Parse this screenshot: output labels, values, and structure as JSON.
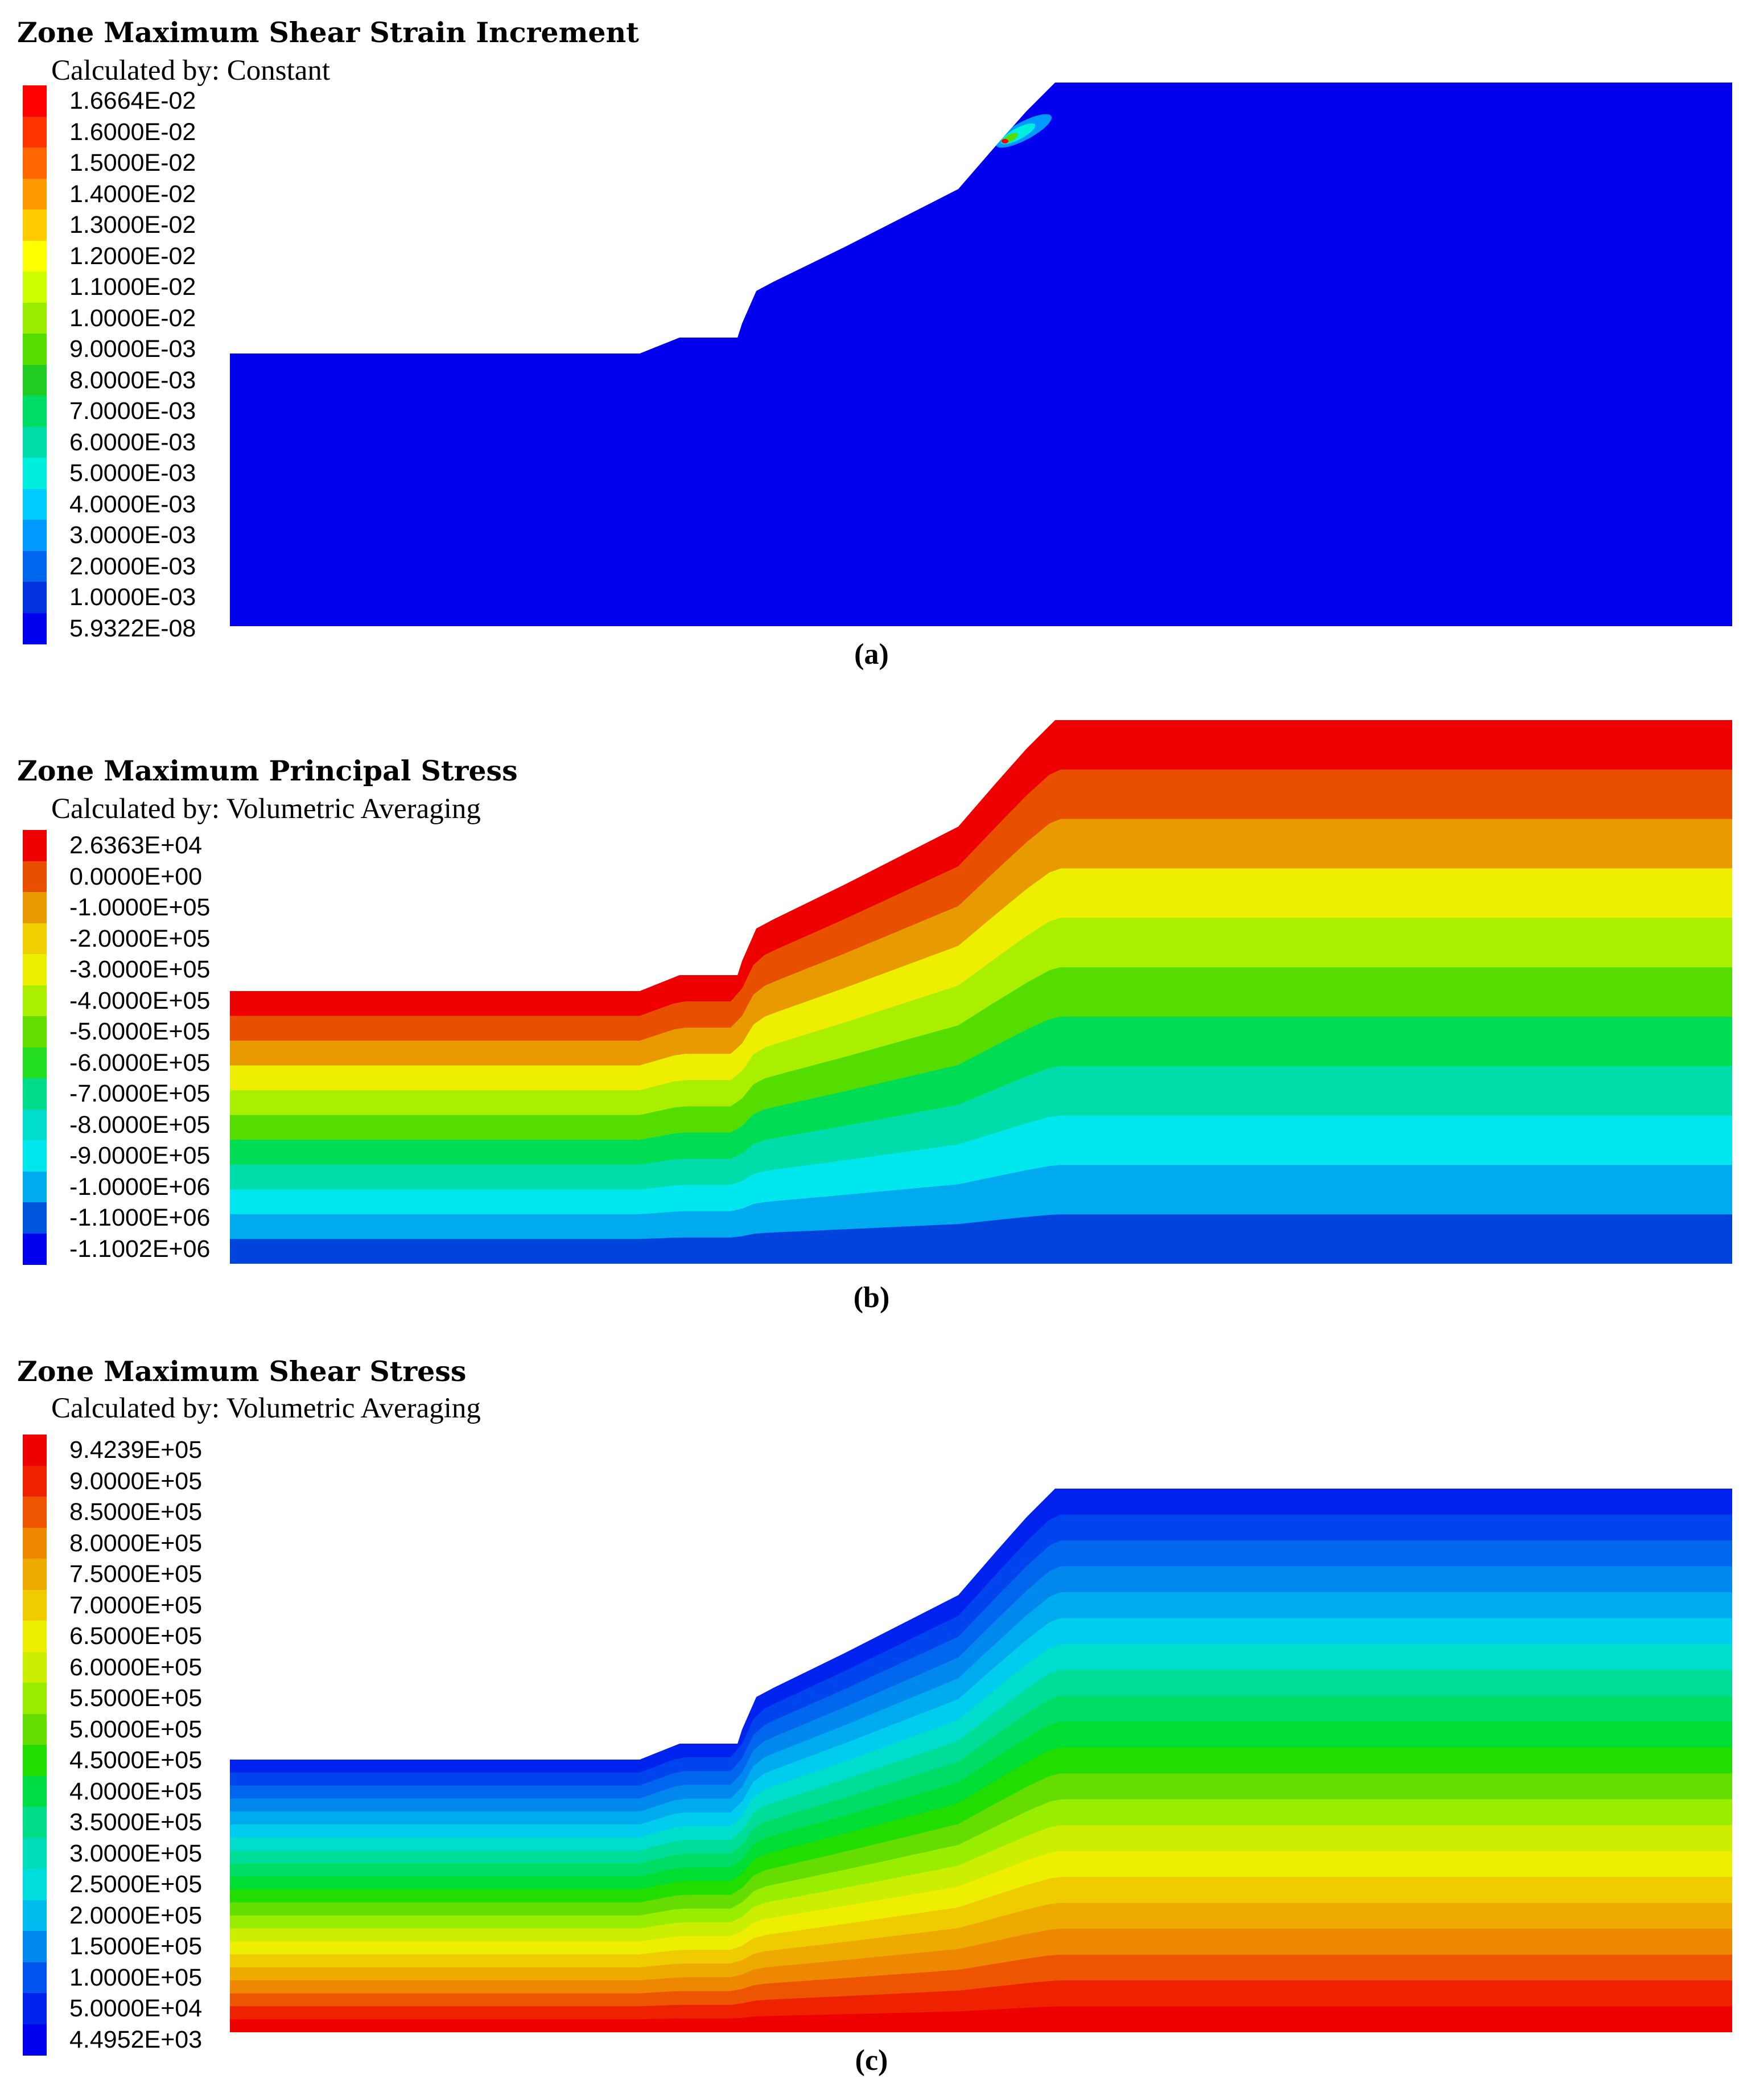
{
  "panels": [
    {
      "title": "Zone Maximum Shear Strain Increment",
      "subtitle": "Calculated by: Constant",
      "caption": "(a)",
      "legend": [
        {
          "label": "1.6664E-02",
          "color": "#ff0000"
        },
        {
          "label": "1.6000E-02",
          "color": "#ff3300"
        },
        {
          "label": "1.5000E-02",
          "color": "#ff6600"
        },
        {
          "label": "1.4000E-02",
          "color": "#ff9900"
        },
        {
          "label": "1.3000E-02",
          "color": "#ffcc00"
        },
        {
          "label": "1.2000E-02",
          "color": "#ffff00"
        },
        {
          "label": "1.1000E-02",
          "color": "#ccff00"
        },
        {
          "label": "1.0000E-02",
          "color": "#99ee00"
        },
        {
          "label": "9.0000E-03",
          "color": "#55dd00"
        },
        {
          "label": "8.0000E-03",
          "color": "#22cc22"
        },
        {
          "label": "7.0000E-03",
          "color": "#00dd66"
        },
        {
          "label": "6.0000E-03",
          "color": "#00ddaa"
        },
        {
          "label": "5.0000E-03",
          "color": "#00eedd"
        },
        {
          "label": "4.0000E-03",
          "color": "#00ccff"
        },
        {
          "label": "3.0000E-03",
          "color": "#0099ff"
        },
        {
          "label": "2.0000E-03",
          "color": "#0066ee"
        },
        {
          "label": "1.0000E-03",
          "color": "#0033dd"
        },
        {
          "label": "5.9322E-08",
          "color": "#0000ee"
        }
      ],
      "band_colors": [
        "#0000ee"
      ]
    },
    {
      "title": "Zone Maximum Principal Stress",
      "subtitle": "Calculated by: Volumetric Averaging",
      "caption": "(b)",
      "legend": [
        {
          "label": "2.6363E+04",
          "color": "#ee0000"
        },
        {
          "label": "0.0000E+00",
          "color": "#e85000"
        },
        {
          "label": "-1.0000E+05",
          "color": "#e89a00"
        },
        {
          "label": "-2.0000E+05",
          "color": "#f0d000"
        },
        {
          "label": "-3.0000E+05",
          "color": "#eeee00"
        },
        {
          "label": "-4.0000E+05",
          "color": "#aaee00"
        },
        {
          "label": "-5.0000E+05",
          "color": "#66dd00"
        },
        {
          "label": "-6.0000E+05",
          "color": "#22dd22"
        },
        {
          "label": "-7.0000E+05",
          "color": "#00dd88"
        },
        {
          "label": "-8.0000E+05",
          "color": "#00ddcc"
        },
        {
          "label": "-9.0000E+05",
          "color": "#00e8ee"
        },
        {
          "label": "-1.0000E+06",
          "color": "#00aaee"
        },
        {
          "label": "-1.1000E+06",
          "color": "#0055dd"
        },
        {
          "label": "-1.1002E+06",
          "color": "#0000ee"
        }
      ],
      "band_colors": [
        "#ee0000",
        "#e85000",
        "#e89a00",
        "#eeee00",
        "#aaee00",
        "#55dd00",
        "#00dd55",
        "#00ddaa",
        "#00e8ee",
        "#00aaee",
        "#0044dd"
      ]
    },
    {
      "title": "Zone Maximum Shear Stress",
      "subtitle": "Calculated by: Volumetric Averaging",
      "caption": "(c)",
      "legend": [
        {
          "label": "9.4239E+05",
          "color": "#ee0000"
        },
        {
          "label": "9.0000E+05",
          "color": "#ee2200"
        },
        {
          "label": "8.5000E+05",
          "color": "#ee5500"
        },
        {
          "label": "8.0000E+05",
          "color": "#ee8800"
        },
        {
          "label": "7.5000E+05",
          "color": "#eeaa00"
        },
        {
          "label": "7.0000E+05",
          "color": "#eecc00"
        },
        {
          "label": "6.5000E+05",
          "color": "#eeee00"
        },
        {
          "label": "6.0000E+05",
          "color": "#ccee00"
        },
        {
          "label": "5.5000E+05",
          "color": "#99ee00"
        },
        {
          "label": "5.0000E+05",
          "color": "#66dd00"
        },
        {
          "label": "4.5000E+05",
          "color": "#22dd00"
        },
        {
          "label": "4.0000E+05",
          "color": "#00dd44"
        },
        {
          "label": "3.5000E+05",
          "color": "#00dd88"
        },
        {
          "label": "3.0000E+05",
          "color": "#00ddbb"
        },
        {
          "label": "2.5000E+05",
          "color": "#00dddd"
        },
        {
          "label": "2.0000E+05",
          "color": "#00bbee"
        },
        {
          "label": "1.5000E+05",
          "color": "#0088ee"
        },
        {
          "label": "1.0000E+05",
          "color": "#0055ee"
        },
        {
          "label": "5.0000E+04",
          "color": "#0022ee"
        },
        {
          "label": "4.4952E+03",
          "color": "#0000ee"
        }
      ],
      "band_colors": [
        "#0022ee",
        "#0044ee",
        "#0066ee",
        "#0088ee",
        "#00aaee",
        "#00ccee",
        "#00ddcc",
        "#00dd99",
        "#00dd66",
        "#00dd33",
        "#22dd00",
        "#66dd00",
        "#99ee00",
        "#ccee00",
        "#eeee00",
        "#eecc00",
        "#eeaa00",
        "#ee8800",
        "#ee5500",
        "#ee2200",
        "#ee0000"
      ]
    }
  ]
}
